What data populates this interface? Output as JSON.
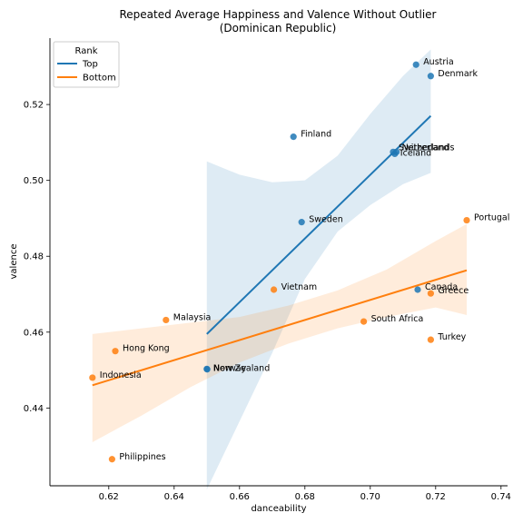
{
  "chart_data": {
    "type": "scatter",
    "title": "Repeated Average Happiness and Valence Without Outlier",
    "subtitle": "(Dominican Republic)",
    "xlabel": "danceability",
    "ylabel": "valence",
    "xlim": [
      0.602,
      0.742
    ],
    "ylim": [
      0.4195,
      0.5375
    ],
    "xticks": [
      0.62,
      0.64,
      0.66,
      0.68,
      0.7,
      0.72,
      0.74
    ],
    "yticks": [
      0.44,
      0.46,
      0.48,
      0.5,
      0.52
    ],
    "grid": false,
    "legend": {
      "title": "Rank",
      "placement": "top-left"
    },
    "series": [
      {
        "name": "Top",
        "color": "#1f77b4",
        "band_color": "#1f77b4",
        "points": [
          {
            "label": "Austria",
            "x": 0.714,
            "y": 0.5305
          },
          {
            "label": "Denmark",
            "x": 0.7185,
            "y": 0.5275
          },
          {
            "label": "Finland",
            "x": 0.6765,
            "y": 0.5115
          },
          {
            "label": "Switzerland",
            "x": 0.707,
            "y": 0.5075
          },
          {
            "label": "Netherlands",
            "x": 0.708,
            "y": 0.5075
          },
          {
            "label": "Iceland",
            "x": 0.7075,
            "y": 0.507
          },
          {
            "label": "Sweden",
            "x": 0.679,
            "y": 0.489
          },
          {
            "label": "Canada",
            "x": 0.7145,
            "y": 0.4712
          },
          {
            "label": "New Zealand",
            "x": 0.65,
            "y": 0.4503
          },
          {
            "label": "Norway",
            "x": 0.6501,
            "y": 0.4502
          }
        ],
        "fit": {
          "x": [
            0.65,
            0.7185
          ],
          "y": [
            0.4595,
            0.517
          ]
        },
        "ci_upper": [
          [
            0.65,
            0.505
          ],
          [
            0.66,
            0.5015
          ],
          [
            0.67,
            0.4995
          ],
          [
            0.68,
            0.5
          ],
          [
            0.69,
            0.5065
          ],
          [
            0.7,
            0.5175
          ],
          [
            0.71,
            0.5275
          ],
          [
            0.7185,
            0.5345
          ]
        ],
        "ci_lower": [
          [
            0.65,
            0.4185
          ],
          [
            0.66,
            0.4365
          ],
          [
            0.67,
            0.4545
          ],
          [
            0.68,
            0.474
          ],
          [
            0.69,
            0.4865
          ],
          [
            0.7,
            0.4935
          ],
          [
            0.71,
            0.499
          ],
          [
            0.7185,
            0.502
          ]
        ]
      },
      {
        "name": "Bottom",
        "color": "#ff7f0e",
        "band_color": "#ff7f0e",
        "points": [
          {
            "label": "Portugal",
            "x": 0.7295,
            "y": 0.4895
          },
          {
            "label": "Vietnam",
            "x": 0.6705,
            "y": 0.4712
          },
          {
            "label": "Greece",
            "x": 0.7185,
            "y": 0.4702
          },
          {
            "label": "Malaysia",
            "x": 0.6375,
            "y": 0.4632
          },
          {
            "label": "South Africa",
            "x": 0.698,
            "y": 0.4628
          },
          {
            "label": "Turkey",
            "x": 0.7185,
            "y": 0.458
          },
          {
            "label": "Hong Kong",
            "x": 0.622,
            "y": 0.455
          },
          {
            "label": "Indonesia",
            "x": 0.615,
            "y": 0.448
          },
          {
            "label": "Philippines",
            "x": 0.621,
            "y": 0.4265
          }
        ],
        "fit": {
          "x": [
            0.615,
            0.7295
          ],
          "y": [
            0.446,
            0.4763
          ]
        },
        "ci_upper": [
          [
            0.615,
            0.4595
          ],
          [
            0.63,
            0.461
          ],
          [
            0.645,
            0.4625
          ],
          [
            0.66,
            0.464
          ],
          [
            0.675,
            0.467
          ],
          [
            0.69,
            0.471
          ],
          [
            0.705,
            0.4765
          ],
          [
            0.72,
            0.484
          ],
          [
            0.7295,
            0.4885
          ]
        ],
        "ci_lower": [
          [
            0.615,
            0.431
          ],
          [
            0.63,
            0.438
          ],
          [
            0.645,
            0.4455
          ],
          [
            0.66,
            0.452
          ],
          [
            0.675,
            0.457
          ],
          [
            0.69,
            0.461
          ],
          [
            0.705,
            0.464
          ],
          [
            0.72,
            0.4665
          ],
          [
            0.7295,
            0.4645
          ]
        ]
      }
    ]
  }
}
